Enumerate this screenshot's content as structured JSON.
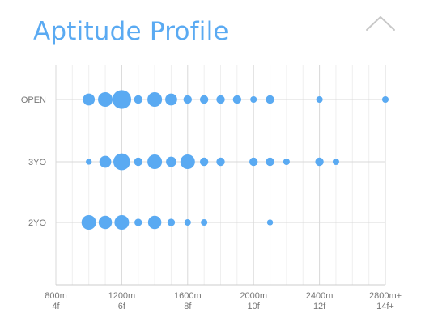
{
  "header": {
    "title": "Aptitude Profile",
    "collapse_icon": "chevron-up-icon"
  },
  "colors": {
    "accent": "#5aaaf2",
    "title": "#5aaaf2",
    "grid_major": "#d8d8d8",
    "grid_minor": "#efefef",
    "axis": "#cccccc",
    "tick_text": "#777777",
    "chevron": "#c8c8c8"
  },
  "chart_data": {
    "type": "scatter",
    "title": "Aptitude Profile",
    "xlabel": "",
    "ylabel": "",
    "xlim": [
      800,
      2800
    ],
    "x_ticks": [
      {
        "value": 800,
        "line1": "800m",
        "line2": "4f"
      },
      {
        "value": 1200,
        "line1": "1200m",
        "line2": "6f"
      },
      {
        "value": 1600,
        "line1": "1600m",
        "line2": "8f"
      },
      {
        "value": 2000,
        "line1": "2000m",
        "line2": "10f"
      },
      {
        "value": 2400,
        "line1": "2400m",
        "line2": "12f"
      },
      {
        "value": 2800,
        "line1": "2800m+",
        "line2": "14f+"
      }
    ],
    "x_minor_step": 100,
    "categories": [
      "OPEN",
      "3YO",
      "2YO"
    ],
    "grid": true,
    "legend": "none",
    "series": [
      {
        "category": "OPEN",
        "points": [
          {
            "x": 1000,
            "size": 2
          },
          {
            "x": 1100,
            "size": 3
          },
          {
            "x": 1200,
            "size": 5
          },
          {
            "x": 1300,
            "size": 1
          },
          {
            "x": 1400,
            "size": 3
          },
          {
            "x": 1500,
            "size": 2
          },
          {
            "x": 1600,
            "size": 1
          },
          {
            "x": 1700,
            "size": 1
          },
          {
            "x": 1800,
            "size": 1
          },
          {
            "x": 1900,
            "size": 1
          },
          {
            "x": 2000,
            "size": 0.6
          },
          {
            "x": 2100,
            "size": 1
          },
          {
            "x": 2400,
            "size": 0.6
          },
          {
            "x": 2800,
            "size": 0.6
          }
        ]
      },
      {
        "category": "3YO",
        "points": [
          {
            "x": 1000,
            "size": 0.5
          },
          {
            "x": 1100,
            "size": 2
          },
          {
            "x": 1200,
            "size": 4
          },
          {
            "x": 1300,
            "size": 1
          },
          {
            "x": 1400,
            "size": 3
          },
          {
            "x": 1500,
            "size": 1.5
          },
          {
            "x": 1600,
            "size": 3
          },
          {
            "x": 1700,
            "size": 1
          },
          {
            "x": 1800,
            "size": 1
          },
          {
            "x": 2000,
            "size": 1
          },
          {
            "x": 2100,
            "size": 1
          },
          {
            "x": 2200,
            "size": 0.6
          },
          {
            "x": 2400,
            "size": 1
          },
          {
            "x": 2500,
            "size": 0.6
          }
        ]
      },
      {
        "category": "2YO",
        "points": [
          {
            "x": 1000,
            "size": 3
          },
          {
            "x": 1100,
            "size": 2.5
          },
          {
            "x": 1200,
            "size": 3
          },
          {
            "x": 1300,
            "size": 0.8
          },
          {
            "x": 1400,
            "size": 2.5
          },
          {
            "x": 1500,
            "size": 0.8
          },
          {
            "x": 1600,
            "size": 0.6
          },
          {
            "x": 1700,
            "size": 0.6
          },
          {
            "x": 2100,
            "size": 0.5
          }
        ]
      }
    ]
  }
}
